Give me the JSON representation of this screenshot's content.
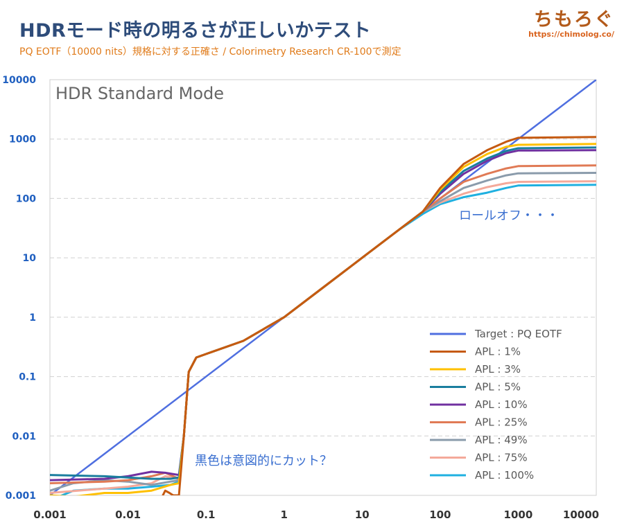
{
  "header": {
    "title": "HDRモード時の明るさが正しいかテスト",
    "subtitle": "PQ EOTF（10000 nits）規格に対する正確さ / Colorimetry Research CR-100で測定",
    "logo": "ちもろぐ",
    "logo_url": "https://chimolog.co/"
  },
  "chart_data": {
    "type": "line",
    "title": "HDR Standard Mode",
    "xscale": "log",
    "yscale": "log",
    "xlim": [
      0.001,
      10000
    ],
    "ylim": [
      0.001,
      10000
    ],
    "x_ticks": [
      "0.001",
      "0.01",
      "0.1",
      "1",
      "10",
      "100",
      "1000",
      "10000"
    ],
    "y_ticks": [
      "0.001",
      "0.01",
      "0.1",
      "1",
      "10",
      "100",
      "1000",
      "10000"
    ],
    "grid": "horizontal dashed",
    "legend_position": "lower-right",
    "annotations": [
      "ロールオフ・・・",
      "黒色は意図的にカット？"
    ],
    "series": [
      {
        "name": "Target : PQ EOTF",
        "color": "#4f6fe0",
        "points": [
          [
            0.001,
            0.001
          ],
          [
            10000,
            10000
          ]
        ]
      },
      {
        "name": "APL : 1%",
        "color": "#c55a11",
        "points": [
          [
            0.028,
            0.001
          ],
          [
            0.03,
            0.0012
          ],
          [
            0.034,
            0.0011
          ],
          [
            0.038,
            0.001
          ],
          [
            0.045,
            0.001
          ],
          [
            0.052,
            0.01
          ],
          [
            0.06,
            0.12
          ],
          [
            0.075,
            0.21
          ],
          [
            0.1,
            0.24
          ],
          [
            0.3,
            0.4
          ],
          [
            1,
            1
          ],
          [
            3,
            3
          ],
          [
            10,
            10
          ],
          [
            30,
            30
          ],
          [
            60,
            60
          ],
          [
            100,
            150
          ],
          [
            200,
            380
          ],
          [
            400,
            650
          ],
          [
            700,
            900
          ],
          [
            1000,
            1050
          ],
          [
            10000,
            1080
          ]
        ]
      },
      {
        "name": "APL : 3%",
        "color": "#ffc000",
        "points": [
          [
            0.001,
            0.001
          ],
          [
            0.002,
            0.00095
          ],
          [
            0.005,
            0.0011
          ],
          [
            0.01,
            0.0011
          ],
          [
            0.02,
            0.0012
          ],
          [
            0.035,
            0.0015
          ],
          [
            0.045,
            0.0016
          ],
          [
            0.052,
            0.01
          ],
          [
            0.06,
            0.12
          ],
          [
            0.075,
            0.21
          ],
          [
            0.1,
            0.24
          ],
          [
            0.3,
            0.4
          ],
          [
            1,
            1
          ],
          [
            3,
            3
          ],
          [
            10,
            10
          ],
          [
            30,
            30
          ],
          [
            60,
            60
          ],
          [
            100,
            140
          ],
          [
            200,
            340
          ],
          [
            400,
            560
          ],
          [
            700,
            740
          ],
          [
            1000,
            800
          ],
          [
            10000,
            830
          ]
        ]
      },
      {
        "name": "APL : 5%",
        "color": "#1a7e9e",
        "points": [
          [
            0.001,
            0.0022
          ],
          [
            0.005,
            0.0021
          ],
          [
            0.01,
            0.002
          ],
          [
            0.02,
            0.0019
          ],
          [
            0.035,
            0.0019
          ],
          [
            0.045,
            0.002
          ],
          [
            0.052,
            0.01
          ],
          [
            0.06,
            0.12
          ],
          [
            0.075,
            0.21
          ],
          [
            0.1,
            0.24
          ],
          [
            0.3,
            0.4
          ],
          [
            1,
            1
          ],
          [
            3,
            3
          ],
          [
            10,
            10
          ],
          [
            30,
            30
          ],
          [
            60,
            60
          ],
          [
            100,
            130
          ],
          [
            200,
            290
          ],
          [
            400,
            470
          ],
          [
            700,
            630
          ],
          [
            1000,
            700
          ],
          [
            10000,
            720
          ]
        ]
      },
      {
        "name": "APL : 10%",
        "color": "#7030a0",
        "points": [
          [
            0.001,
            0.0018
          ],
          [
            0.005,
            0.0019
          ],
          [
            0.01,
            0.0021
          ],
          [
            0.02,
            0.0025
          ],
          [
            0.03,
            0.0024
          ],
          [
            0.045,
            0.0022
          ],
          [
            0.052,
            0.01
          ],
          [
            0.06,
            0.12
          ],
          [
            0.075,
            0.21
          ],
          [
            0.1,
            0.24
          ],
          [
            0.3,
            0.4
          ],
          [
            1,
            1
          ],
          [
            3,
            3
          ],
          [
            10,
            10
          ],
          [
            30,
            30
          ],
          [
            60,
            60
          ],
          [
            100,
            120
          ],
          [
            200,
            260
          ],
          [
            400,
            430
          ],
          [
            700,
            580
          ],
          [
            1000,
            640
          ],
          [
            10000,
            650
          ]
        ]
      },
      {
        "name": "APL : 25%",
        "color": "#e07a55",
        "points": [
          [
            0.001,
            0.0016
          ],
          [
            0.005,
            0.0017
          ],
          [
            0.01,
            0.0018
          ],
          [
            0.02,
            0.0021
          ],
          [
            0.03,
            0.0024
          ],
          [
            0.045,
            0.0019
          ],
          [
            0.052,
            0.01
          ],
          [
            0.06,
            0.12
          ],
          [
            0.075,
            0.21
          ],
          [
            0.1,
            0.24
          ],
          [
            0.3,
            0.4
          ],
          [
            1,
            1
          ],
          [
            3,
            3
          ],
          [
            10,
            10
          ],
          [
            30,
            30
          ],
          [
            60,
            60
          ],
          [
            100,
            100
          ],
          [
            200,
            190
          ],
          [
            400,
            260
          ],
          [
            700,
            320
          ],
          [
            1000,
            350
          ],
          [
            10000,
            360
          ]
        ]
      },
      {
        "name": "APL : 49%",
        "color": "#8a9bab",
        "points": [
          [
            0.001,
            0.0012
          ],
          [
            0.002,
            0.0016
          ],
          [
            0.005,
            0.0018
          ],
          [
            0.01,
            0.0017
          ],
          [
            0.02,
            0.0015
          ],
          [
            0.035,
            0.0017
          ],
          [
            0.045,
            0.0018
          ],
          [
            0.052,
            0.01
          ],
          [
            0.06,
            0.12
          ],
          [
            0.075,
            0.21
          ],
          [
            0.1,
            0.24
          ],
          [
            0.3,
            0.4
          ],
          [
            1,
            1
          ],
          [
            3,
            3
          ],
          [
            10,
            10
          ],
          [
            30,
            30
          ],
          [
            60,
            60
          ],
          [
            100,
            90
          ],
          [
            200,
            150
          ],
          [
            400,
            200
          ],
          [
            700,
            245
          ],
          [
            1000,
            265
          ],
          [
            10000,
            270
          ]
        ]
      },
      {
        "name": "APL : 75%",
        "color": "#f4a99a",
        "points": [
          [
            0.001,
            0.0011
          ],
          [
            0.005,
            0.0013
          ],
          [
            0.01,
            0.0014
          ],
          [
            0.02,
            0.0016
          ],
          [
            0.03,
            0.0021
          ],
          [
            0.045,
            0.0019
          ],
          [
            0.052,
            0.01
          ],
          [
            0.06,
            0.12
          ],
          [
            0.075,
            0.21
          ],
          [
            0.1,
            0.24
          ],
          [
            0.3,
            0.4
          ],
          [
            1,
            1
          ],
          [
            3,
            3
          ],
          [
            10,
            10
          ],
          [
            30,
            30
          ],
          [
            60,
            60
          ],
          [
            100,
            85
          ],
          [
            200,
            120
          ],
          [
            400,
            155
          ],
          [
            700,
            180
          ],
          [
            1000,
            190
          ],
          [
            10000,
            195
          ]
        ]
      },
      {
        "name": "APL : 100%",
        "color": "#1fb0e0",
        "points": [
          [
            0.0013,
            0.00095
          ],
          [
            0.002,
            0.0012
          ],
          [
            0.005,
            0.0013
          ],
          [
            0.01,
            0.0013
          ],
          [
            0.02,
            0.0014
          ],
          [
            0.035,
            0.0015
          ],
          [
            0.045,
            0.0017
          ],
          [
            0.052,
            0.01
          ],
          [
            0.06,
            0.12
          ],
          [
            0.075,
            0.21
          ],
          [
            0.1,
            0.24
          ],
          [
            0.3,
            0.4
          ],
          [
            1,
            1
          ],
          [
            3,
            3
          ],
          [
            10,
            10
          ],
          [
            30,
            30
          ],
          [
            60,
            55
          ],
          [
            100,
            80
          ],
          [
            200,
            105
          ],
          [
            400,
            125
          ],
          [
            700,
            150
          ],
          [
            1000,
            165
          ],
          [
            10000,
            170
          ]
        ]
      }
    ]
  }
}
